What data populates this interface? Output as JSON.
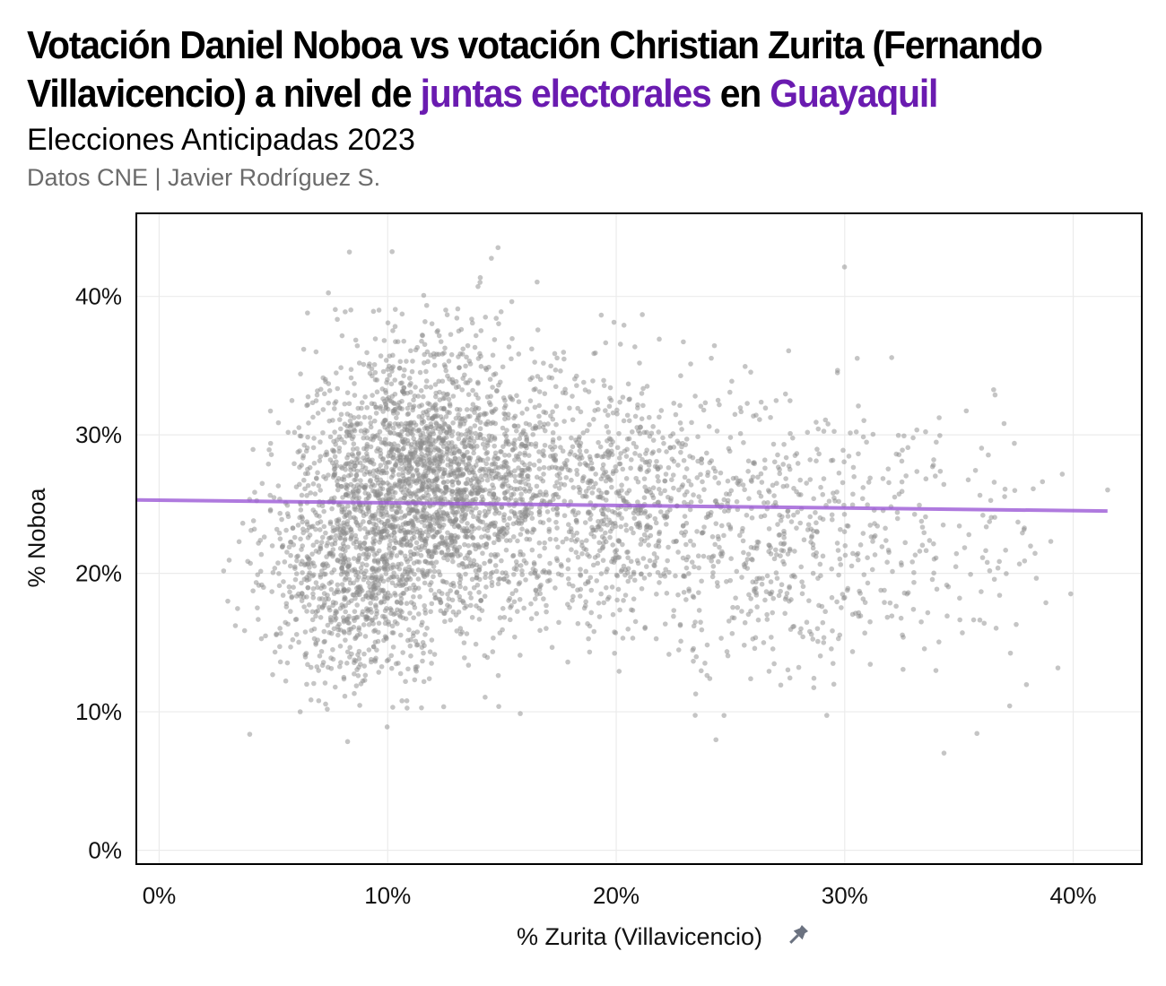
{
  "title": {
    "line1": "Votación Daniel Noboa vs votación Christian Zurita (Fernando",
    "line2_part1": "Villavicencio) a nivel de ",
    "line2_highlight1": "juntas electorales",
    "line2_part2": " en ",
    "line2_highlight2": "Guayaquil"
  },
  "subtitle": "Elecciones Anticipadas 2023",
  "caption": "Datos CNE | Javier Rodríguez S.",
  "icons": {
    "pin": "pin-icon"
  },
  "colors": {
    "highlight": "#6a1bb0",
    "points": "#8c8c8c",
    "trend": "#9b59d6"
  },
  "chart_data": {
    "type": "scatter",
    "xlabel": "% Zurita (Villavicencio)",
    "ylabel": "% Noboa",
    "xlim": [
      -0.01,
      0.43
    ],
    "ylim": [
      -0.01,
      0.46
    ],
    "x_ticks": [
      0,
      0.1,
      0.2,
      0.3,
      0.4
    ],
    "x_tick_labels": [
      "0%",
      "10%",
      "20%",
      "30%",
      "40%"
    ],
    "y_ticks": [
      0,
      0.1,
      0.2,
      0.3,
      0.4
    ],
    "y_tick_labels": [
      "0%",
      "10%",
      "20%",
      "30%",
      "40%"
    ],
    "grid": true,
    "trend_line": {
      "x": [
        -0.01,
        0.415
      ],
      "y": [
        0.253,
        0.245
      ]
    },
    "clusters": [
      {
        "x_mean": 0.115,
        "x_sd": 0.025,
        "y_mean": 0.265,
        "y_sd": 0.05,
        "n": 2200
      },
      {
        "x_mean": 0.085,
        "x_sd": 0.02,
        "y_mean": 0.195,
        "y_sd": 0.04,
        "n": 700
      },
      {
        "x_mean": 0.185,
        "x_sd": 0.03,
        "y_mean": 0.255,
        "y_sd": 0.045,
        "n": 900
      },
      {
        "x_mean": 0.265,
        "x_sd": 0.04,
        "y_mean": 0.23,
        "y_sd": 0.05,
        "n": 600
      },
      {
        "x_mean": 0.34,
        "x_sd": 0.03,
        "y_mean": 0.21,
        "y_sd": 0.05,
        "n": 120
      }
    ]
  }
}
